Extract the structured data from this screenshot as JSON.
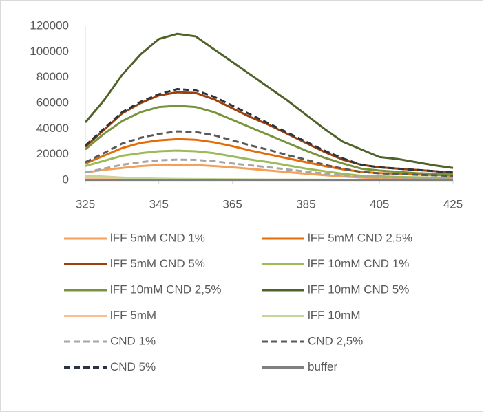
{
  "chart_data": {
    "type": "line",
    "x": [
      325,
      330,
      335,
      340,
      345,
      350,
      355,
      360,
      365,
      370,
      375,
      380,
      385,
      390,
      395,
      400,
      405,
      410,
      415,
      420,
      425
    ],
    "xlim": [
      325,
      425
    ],
    "xticks": [
      325,
      345,
      365,
      385,
      405,
      425
    ],
    "ylim": [
      0,
      120000
    ],
    "yticks": [
      0,
      20000,
      40000,
      60000,
      80000,
      100000,
      120000
    ],
    "legend": "bottom",
    "series": [
      {
        "name": "lFF 5mM CND 1%",
        "color": "#f4a05a",
        "style": "solid",
        "values": [
          6000,
          8000,
          9500,
          11000,
          11800,
          12000,
          11800,
          11000,
          10000,
          8800,
          7500,
          6300,
          5000,
          3900,
          2900,
          2100,
          1700,
          1500,
          1300,
          1200,
          1000
        ]
      },
      {
        "name": "lFF 5mM CND 2,5%",
        "color": "#e36c0a",
        "style": "solid",
        "values": [
          13000,
          19000,
          25000,
          29000,
          31000,
          32000,
          31500,
          29500,
          26500,
          23000,
          20000,
          17000,
          14000,
          11000,
          8500,
          6500,
          5500,
          5000,
          4500,
          4000,
          3500
        ]
      },
      {
        "name": "lFF 5mM CND 5%",
        "color": "#9c3f0b",
        "style": "solid",
        "values": [
          26000,
          39000,
          52000,
          60000,
          66000,
          68500,
          68000,
          63000,
          56000,
          49000,
          43000,
          36000,
          29000,
          22000,
          16000,
          12000,
          10000,
          9000,
          8000,
          7000,
          6000
        ]
      },
      {
        "name": "lFF 10mM CND 1%",
        "color": "#9bbb59",
        "style": "solid",
        "values": [
          11000,
          15000,
          19000,
          21000,
          22500,
          23000,
          22500,
          21000,
          18500,
          16000,
          14000,
          11500,
          9000,
          7000,
          5000,
          3500,
          3000,
          2500,
          2200,
          2000,
          1800
        ]
      },
      {
        "name": "lFF 10mM CND 2,5%",
        "color": "#77933c",
        "style": "solid",
        "values": [
          24000,
          36000,
          46000,
          53000,
          57000,
          58000,
          57000,
          53000,
          47000,
          41000,
          35000,
          29000,
          23000,
          17500,
          13000,
          9000,
          7500,
          6500,
          5500,
          5000,
          4500
        ]
      },
      {
        "name": "lFF 10mM CND 5%",
        "color": "#4f6228",
        "style": "solid",
        "values": [
          45000,
          62000,
          82000,
          98000,
          110000,
          114000,
          112000,
          102000,
          92000,
          82000,
          72000,
          62000,
          51000,
          40000,
          30000,
          24000,
          18000,
          16500,
          14000,
          11500,
          9500
        ]
      },
      {
        "name": "lFF 5mM",
        "color": "#fac090",
        "style": "solid",
        "values": [
          1500,
          1300,
          1100,
          1000,
          900,
          800,
          700,
          600,
          600,
          500,
          500,
          400,
          400,
          300,
          300,
          300,
          300,
          300,
          200,
          200,
          200
        ]
      },
      {
        "name": "lFF 10mM",
        "color": "#c3d69b",
        "style": "solid",
        "values": [
          3500,
          2800,
          2000,
          1500,
          1200,
          1000,
          900,
          800,
          700,
          600,
          500,
          500,
          400,
          400,
          300,
          300,
          300,
          300,
          300,
          300,
          300
        ]
      },
      {
        "name": "CND 1%",
        "color": "#a6a6a6",
        "style": "dashed",
        "values": [
          6000,
          9000,
          12000,
          14000,
          15500,
          16000,
          15800,
          14800,
          13000,
          11500,
          10000,
          8300,
          6700,
          5200,
          3800,
          2700,
          2200,
          2000,
          1800,
          1600,
          1400
        ]
      },
      {
        "name": "CND 2,5%",
        "color": "#595959",
        "style": "dashed",
        "values": [
          14000,
          21000,
          28500,
          33000,
          36000,
          38000,
          37500,
          35000,
          31000,
          27000,
          23500,
          19500,
          16000,
          12000,
          9000,
          6500,
          5300,
          4900,
          4200,
          3800,
          3200
        ]
      },
      {
        "name": "CND 5%",
        "color": "#2b3340",
        "style": "dashed",
        "values": [
          27000,
          40000,
          53000,
          61000,
          67000,
          71000,
          70000,
          65000,
          58000,
          51000,
          44000,
          37000,
          30000,
          23000,
          17000,
          12000,
          10000,
          9000,
          8000,
          7000,
          6000
        ]
      },
      {
        "name": "buffer",
        "color": "#7f7f7f",
        "style": "solid",
        "values": [
          200,
          200,
          200,
          200,
          200,
          200,
          200,
          200,
          200,
          200,
          200,
          200,
          200,
          200,
          200,
          200,
          200,
          200,
          200,
          200,
          200
        ]
      }
    ]
  }
}
